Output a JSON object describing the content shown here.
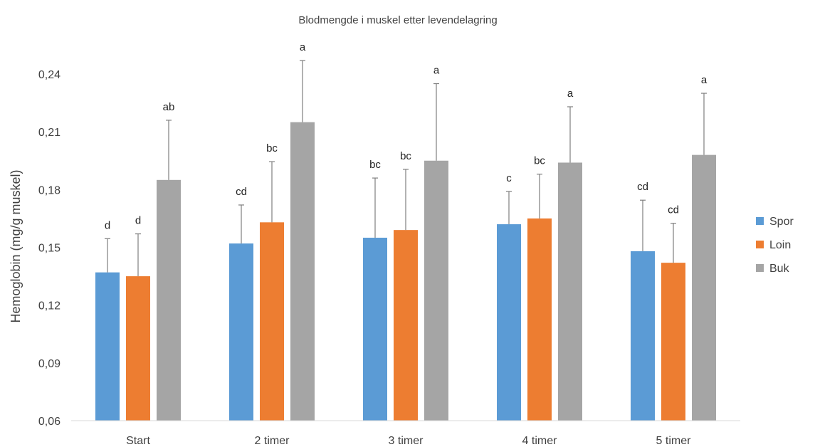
{
  "chart_data": {
    "type": "bar",
    "title": "Blodmengde i muskel etter levendelagring",
    "xlabel": "",
    "ylabel": "Hemoglobin (mg/g muskel)",
    "ylim": [
      0.06,
      0.24
    ],
    "yticks": [
      0.06,
      0.09,
      0.12,
      0.15,
      0.18,
      0.21,
      0.24
    ],
    "ytick_labels": [
      "0,06",
      "0,09",
      "0,12",
      "0,15",
      "0,18",
      "0,21",
      "0,24"
    ],
    "categories": [
      "Start",
      "2 timer",
      "3 timer",
      "4 timer",
      "5 timer"
    ],
    "series": [
      {
        "name": "Spor",
        "color": "#5b9bd5",
        "values": [
          0.137,
          0.152,
          0.155,
          0.162,
          0.148
        ],
        "error_upper": [
          0.0175,
          0.02,
          0.031,
          0.017,
          0.0265
        ],
        "significance": [
          "d",
          "cd",
          "bc",
          "c",
          "cd"
        ]
      },
      {
        "name": "Loin",
        "color": "#ed7d31",
        "values": [
          0.135,
          0.163,
          0.159,
          0.165,
          0.142
        ],
        "error_upper": [
          0.022,
          0.0315,
          0.0315,
          0.023,
          0.0205
        ],
        "significance": [
          "d",
          "bc",
          "bc",
          "bc",
          "cd"
        ]
      },
      {
        "name": "Buk",
        "color": "#a5a5a5",
        "values": [
          0.185,
          0.215,
          0.195,
          0.194,
          0.198
        ],
        "error_upper": [
          0.031,
          0.032,
          0.04,
          0.029,
          0.032
        ],
        "significance": [
          "ab",
          "a",
          "a",
          "a",
          "a"
        ]
      }
    ],
    "error_bar_color": "#7f7f7f",
    "grid": false,
    "legend_position": "right"
  }
}
